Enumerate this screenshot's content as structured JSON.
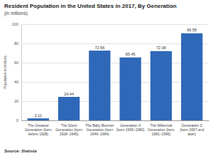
{
  "chart_data": {
    "type": "bar",
    "title": "Resident Population in the United States in 2017, By Generation",
    "subtitle": "(in millions)",
    "y_label": "Population in millions",
    "categories": [
      "The Greatest Generation (born before 1928)",
      "The Silent Generation (born 1928–1945)",
      "The Baby Boomer Generation (born 1946–1964)",
      "Generation X (born 1965–1980)",
      "The Millennial Generation (born 1981–1996)",
      "Generation Z (born 1997 and later)"
    ],
    "values": [
      2.11,
      24.44,
      72.56,
      65.45,
      72.06,
      90.55
    ],
    "color": "#2f68b8",
    "ylim": [
      0,
      100
    ],
    "yticks": [
      0,
      20,
      40,
      60,
      80,
      100
    ],
    "grid": true,
    "data_labels": true,
    "source": "Source: Statista"
  }
}
